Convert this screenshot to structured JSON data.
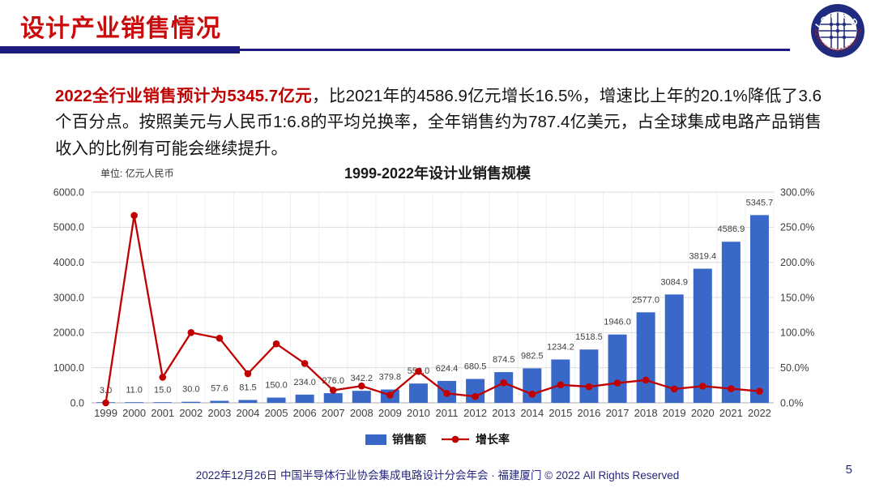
{
  "slide": {
    "title": "设计产业销售情况",
    "page_number": "5",
    "footer_text": "2022年12月26日 中国半导体行业协会集成电路设计分会年会 · 福建厦门 © 2022 All Rights Reserved",
    "logo": {
      "label": "ICCAD",
      "ring_text": "中国半导体行业协会集成电路设计分会"
    }
  },
  "summary": {
    "highlight": "2022全行业销售预计为5345.7亿元",
    "body": "，比2021年的4586.9亿元增长16.5%，增速比上年的20.1%降低了3.6个百分点。按照美元与人民币1:6.8的平均兑换率，全年销售约为787.4亿美元，占全球集成电路产品销售收入的比例有可能会继续提升。"
  },
  "chart_data": {
    "type": "bar",
    "combo_line": true,
    "title": "1999-2022年设计业销售规模",
    "unit_label": "单位: 亿元人民币",
    "categories": [
      "1999",
      "2000",
      "2001",
      "2002",
      "2003",
      "2004",
      "2005",
      "2006",
      "2007",
      "2008",
      "2009",
      "2010",
      "2011",
      "2012",
      "2013",
      "2014",
      "2015",
      "2016",
      "2017",
      "2018",
      "2019",
      "2020",
      "2021",
      "2022"
    ],
    "series": [
      {
        "name": "销售额",
        "type": "bar",
        "axis": "left",
        "color": "#3A68C8",
        "values": [
          3.0,
          11.0,
          15.0,
          30.0,
          57.6,
          81.5,
          150.0,
          234.0,
          276.0,
          342.2,
          379.8,
          550.0,
          624.4,
          680.5,
          874.5,
          982.5,
          1234.2,
          1518.5,
          1946.0,
          2577.0,
          3084.9,
          3819.4,
          4586.9,
          5345.7
        ]
      },
      {
        "name": "增长率",
        "type": "line",
        "axis": "right",
        "color": "#C00000",
        "values": [
          0.0,
          266.7,
          36.4,
          100.0,
          92.0,
          41.5,
          84.0,
          56.0,
          17.9,
          24.0,
          11.0,
          44.8,
          13.5,
          9.0,
          28.5,
          12.3,
          25.6,
          23.0,
          28.2,
          32.4,
          19.7,
          23.8,
          20.1,
          16.5
        ]
      }
    ],
    "left_axis": {
      "min": 0,
      "max": 6000,
      "step": 1000,
      "ticks": [
        "0.0",
        "1000.0",
        "2000.0",
        "3000.0",
        "4000.0",
        "5000.0",
        "6000.0"
      ]
    },
    "right_axis": {
      "min": 0,
      "max": 300,
      "step": 50,
      "ticks": [
        "0.0%",
        "50.0%",
        "100.0%",
        "150.0%",
        "200.0%",
        "250.0%",
        "300.0%"
      ]
    },
    "legend_position": "bottom",
    "grid": true
  },
  "colors": {
    "title_red": "#C90B0B",
    "highlight_red": "#C00000",
    "underline_navy": "#1B1B7E",
    "footer_navy": "#26267E",
    "bar_blue": "#3A68C8",
    "line_red": "#C00000",
    "gridline": "#DCDCDC",
    "axis_text": "#3F3F3F"
  }
}
